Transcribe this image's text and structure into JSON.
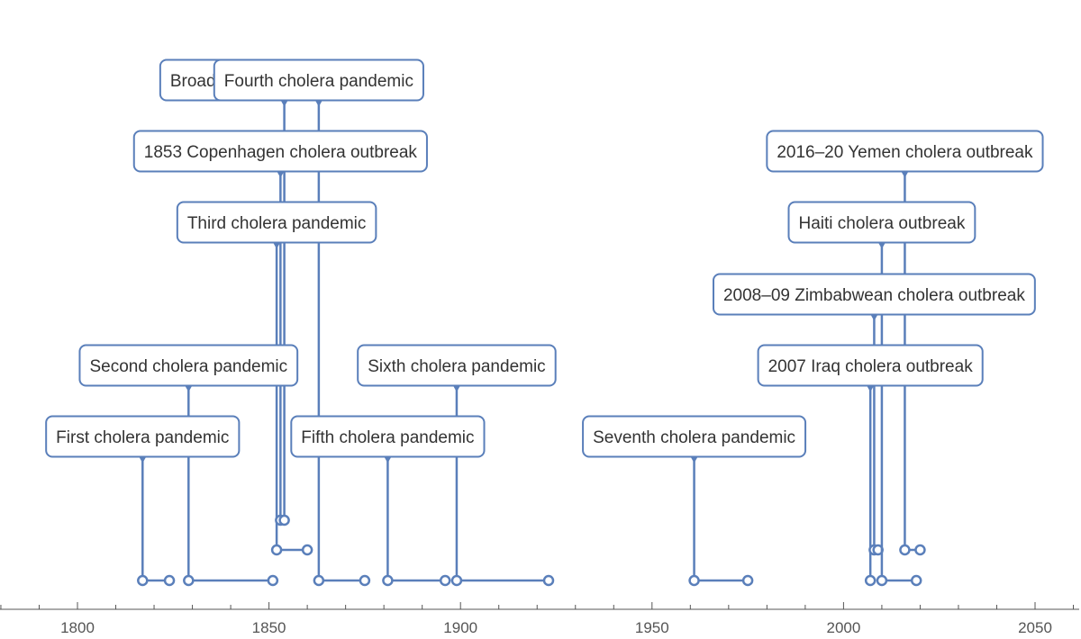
{
  "chart_data": {
    "type": "timeline",
    "title": "",
    "xlabel": "",
    "ylabel": "",
    "xlim": [
      1780,
      2062
    ],
    "x_ticks": [
      1800,
      1850,
      1900,
      1950,
      2000,
      2050
    ],
    "grid": false,
    "legend": "none",
    "colors": {
      "line": "#5a7fba",
      "box_stroke": "#5a7fba",
      "text": "#333333",
      "axis": "#555555"
    },
    "events": [
      {
        "label": "First cholera pandemic",
        "start": 1817,
        "end": 1824,
        "level": 0,
        "lane": 0
      },
      {
        "label": "Second cholera pandemic",
        "start": 1829,
        "end": 1851,
        "level": 1,
        "lane": 0
      },
      {
        "label": "Third cholera pandemic",
        "start": 1852,
        "end": 1860,
        "level": 3,
        "lane": 1
      },
      {
        "label": "1853 Copenhagen cholera outbreak",
        "start": 1853,
        "end": 1853,
        "level": 4,
        "lane": 2
      },
      {
        "label": "Broad Street cholera outbreak",
        "start": 1854,
        "end": 1854,
        "level": 5,
        "lane": 2
      },
      {
        "label": "Fourth cholera pandemic",
        "start": 1863,
        "end": 1875,
        "level": 6,
        "lane": 0
      },
      {
        "label": "Fifth cholera pandemic",
        "start": 1881,
        "end": 1896,
        "level": 0,
        "lane": 0
      },
      {
        "label": "Sixth cholera pandemic",
        "start": 1899,
        "end": 1923,
        "level": 1,
        "lane": 0
      },
      {
        "label": "Seventh cholera pandemic",
        "start": 1961,
        "end": 1975,
        "level": 0,
        "lane": 0
      },
      {
        "label": "2007 Iraq cholera outbreak",
        "start": 2007,
        "end": 2007,
        "level": 1,
        "lane": 0
      },
      {
        "label": "2008–09 Zimbabwean cholera outbreak",
        "start": 2008,
        "end": 2009,
        "level": 2,
        "lane": 1
      },
      {
        "label": "Haiti cholera outbreak",
        "start": 2010,
        "end": 2019,
        "level": 3,
        "lane": 0
      },
      {
        "label": "2016–20 Yemen cholera outbreak",
        "start": 2016,
        "end": 2020,
        "level": 4,
        "lane": 1
      }
    ]
  }
}
